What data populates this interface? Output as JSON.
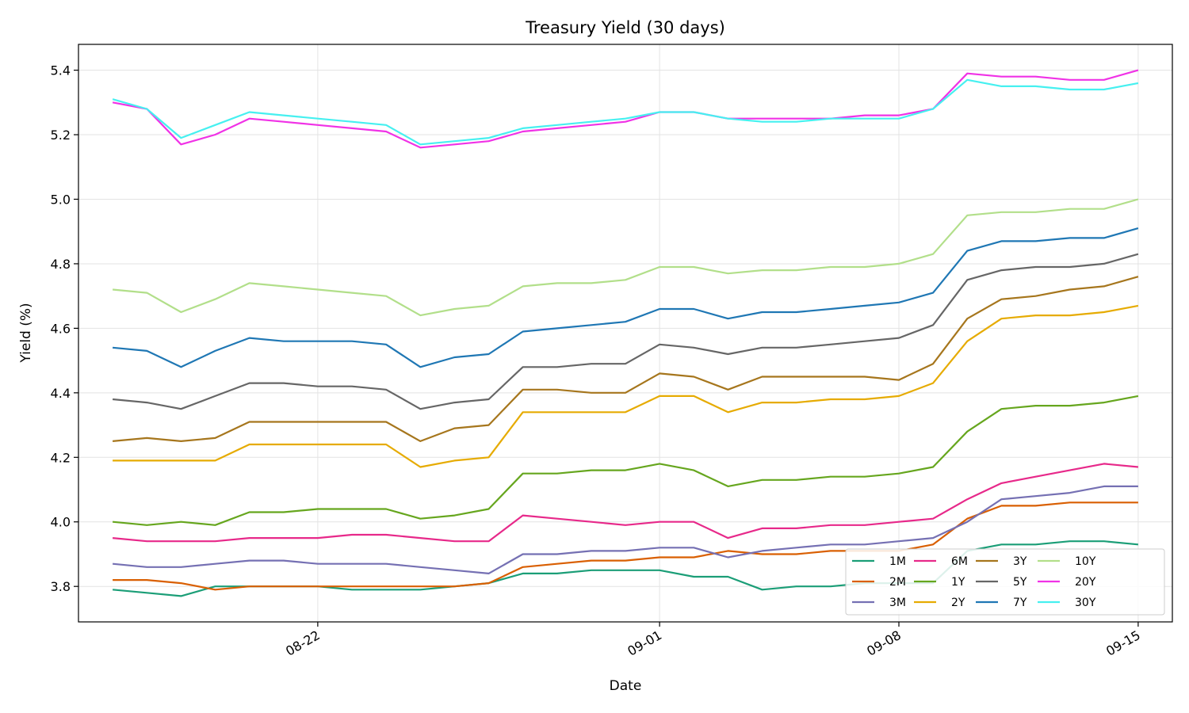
{
  "chart_data": {
    "type": "line",
    "title": "Treasury Yield (30 days)",
    "xlabel": "Date",
    "ylabel": "Yield (%)",
    "x_tick_labels": [
      "08-22",
      "09-01",
      "09-08",
      "09-15"
    ],
    "y_tick_labels": [
      "3.8",
      "4.0",
      "4.2",
      "4.4",
      "4.6",
      "4.8",
      "5.0",
      "5.2",
      "5.4"
    ],
    "ylim": [
      3.69,
      5.48
    ],
    "xlim": [
      "2024-08-15",
      "2024-09-16"
    ],
    "grid": true,
    "legend_position": "lower-right",
    "legend_columns": 5,
    "x": [
      "2024-08-16",
      "2024-08-17",
      "2024-08-18",
      "2024-08-19",
      "2024-08-20",
      "2024-08-21",
      "2024-08-22",
      "2024-08-23",
      "2024-08-24",
      "2024-08-25",
      "2024-08-26",
      "2024-08-27",
      "2024-08-28",
      "2024-08-29",
      "2024-08-30",
      "2024-08-31",
      "2024-09-01",
      "2024-09-02",
      "2024-09-03",
      "2024-09-04",
      "2024-09-05",
      "2024-09-06",
      "2024-09-07",
      "2024-09-08",
      "2024-09-09",
      "2024-09-10",
      "2024-09-11",
      "2024-09-12",
      "2024-09-13",
      "2024-09-14",
      "2024-09-15"
    ],
    "series": [
      {
        "name": "1M",
        "color": "#1b9e77",
        "values": [
          3.79,
          3.78,
          3.77,
          3.8,
          3.8,
          3.8,
          3.8,
          3.79,
          3.79,
          3.79,
          3.8,
          3.81,
          3.84,
          3.84,
          3.85,
          3.85,
          3.85,
          3.83,
          3.83,
          3.79,
          3.8,
          3.8,
          3.81,
          3.81,
          3.81,
          3.91,
          3.93,
          3.93,
          3.94,
          3.94,
          3.93
        ]
      },
      {
        "name": "2M",
        "color": "#d95f02",
        "values": [
          3.82,
          3.82,
          3.81,
          3.79,
          3.8,
          3.8,
          3.8,
          3.8,
          3.8,
          3.8,
          3.8,
          3.81,
          3.86,
          3.87,
          3.88,
          3.88,
          3.89,
          3.89,
          3.91,
          3.9,
          3.9,
          3.91,
          3.91,
          3.91,
          3.93,
          4.01,
          4.05,
          4.05,
          4.06,
          4.06,
          4.06
        ]
      },
      {
        "name": "3M",
        "color": "#7570b3",
        "values": [
          3.87,
          3.86,
          3.86,
          3.87,
          3.88,
          3.88,
          3.87,
          3.87,
          3.87,
          3.86,
          3.85,
          3.84,
          3.9,
          3.9,
          3.91,
          3.91,
          3.92,
          3.92,
          3.89,
          3.91,
          3.92,
          3.93,
          3.93,
          3.94,
          3.95,
          4.0,
          4.07,
          4.08,
          4.09,
          4.11,
          4.11
        ]
      },
      {
        "name": "6M",
        "color": "#e7298a",
        "values": [
          3.95,
          3.94,
          3.94,
          3.94,
          3.95,
          3.95,
          3.95,
          3.96,
          3.96,
          3.95,
          3.94,
          3.94,
          4.02,
          4.01,
          4.0,
          3.99,
          4.0,
          4.0,
          3.95,
          3.98,
          3.98,
          3.99,
          3.99,
          4.0,
          4.01,
          4.07,
          4.12,
          4.14,
          4.16,
          4.18,
          4.17
        ]
      },
      {
        "name": "1Y",
        "color": "#66a61e",
        "values": [
          4.0,
          3.99,
          4.0,
          3.99,
          4.03,
          4.03,
          4.04,
          4.04,
          4.04,
          4.01,
          4.02,
          4.04,
          4.15,
          4.15,
          4.16,
          4.16,
          4.18,
          4.16,
          4.11,
          4.13,
          4.13,
          4.14,
          4.14,
          4.15,
          4.17,
          4.28,
          4.35,
          4.36,
          4.36,
          4.37,
          4.39
        ]
      },
      {
        "name": "2Y",
        "color": "#e6ab02",
        "values": [
          4.19,
          4.19,
          4.19,
          4.19,
          4.24,
          4.24,
          4.24,
          4.24,
          4.24,
          4.17,
          4.19,
          4.2,
          4.34,
          4.34,
          4.34,
          4.34,
          4.39,
          4.39,
          4.34,
          4.37,
          4.37,
          4.38,
          4.38,
          4.39,
          4.43,
          4.56,
          4.63,
          4.64,
          4.64,
          4.65,
          4.67
        ]
      },
      {
        "name": "3Y",
        "color": "#a6761d",
        "values": [
          4.25,
          4.26,
          4.25,
          4.26,
          4.31,
          4.31,
          4.31,
          4.31,
          4.31,
          4.25,
          4.29,
          4.3,
          4.41,
          4.41,
          4.4,
          4.4,
          4.46,
          4.45,
          4.41,
          4.45,
          4.45,
          4.45,
          4.45,
          4.44,
          4.49,
          4.63,
          4.69,
          4.7,
          4.72,
          4.73,
          4.76
        ]
      },
      {
        "name": "5Y",
        "color": "#666666",
        "values": [
          4.38,
          4.37,
          4.35,
          4.39,
          4.43,
          4.43,
          4.42,
          4.42,
          4.41,
          4.35,
          4.37,
          4.38,
          4.48,
          4.48,
          4.49,
          4.49,
          4.55,
          4.54,
          4.52,
          4.54,
          4.54,
          4.55,
          4.56,
          4.57,
          4.61,
          4.75,
          4.78,
          4.79,
          4.79,
          4.8,
          4.83
        ]
      },
      {
        "name": "7Y",
        "color": "#1f77b4",
        "values": [
          4.54,
          4.53,
          4.48,
          4.53,
          4.57,
          4.56,
          4.56,
          4.56,
          4.55,
          4.48,
          4.51,
          4.52,
          4.59,
          4.6,
          4.61,
          4.62,
          4.66,
          4.66,
          4.63,
          4.65,
          4.65,
          4.66,
          4.67,
          4.68,
          4.71,
          4.84,
          4.87,
          4.87,
          4.88,
          4.88,
          4.91
        ]
      },
      {
        "name": "10Y",
        "color": "#b2df8a",
        "values": [
          4.72,
          4.71,
          4.65,
          4.69,
          4.74,
          4.73,
          4.72,
          4.71,
          4.7,
          4.64,
          4.66,
          4.67,
          4.73,
          4.74,
          4.74,
          4.75,
          4.79,
          4.79,
          4.77,
          4.78,
          4.78,
          4.79,
          4.79,
          4.8,
          4.83,
          4.95,
          4.96,
          4.96,
          4.97,
          4.97,
          5.0
        ]
      },
      {
        "name": "20Y",
        "color": "#f032e6",
        "values": [
          5.3,
          5.28,
          5.17,
          5.2,
          5.25,
          5.24,
          5.23,
          5.22,
          5.21,
          5.16,
          5.17,
          5.18,
          5.21,
          5.22,
          5.23,
          5.24,
          5.27,
          5.27,
          5.25,
          5.25,
          5.25,
          5.25,
          5.26,
          5.26,
          5.28,
          5.39,
          5.38,
          5.38,
          5.37,
          5.37,
          5.4
        ]
      },
      {
        "name": "30Y",
        "color": "#46f0f0",
        "values": [
          5.31,
          5.28,
          5.19,
          5.23,
          5.27,
          5.26,
          5.25,
          5.24,
          5.23,
          5.17,
          5.18,
          5.19,
          5.22,
          5.23,
          5.24,
          5.25,
          5.27,
          5.27,
          5.25,
          5.24,
          5.24,
          5.25,
          5.25,
          5.25,
          5.28,
          5.37,
          5.35,
          5.35,
          5.34,
          5.34,
          5.36
        ]
      }
    ]
  }
}
